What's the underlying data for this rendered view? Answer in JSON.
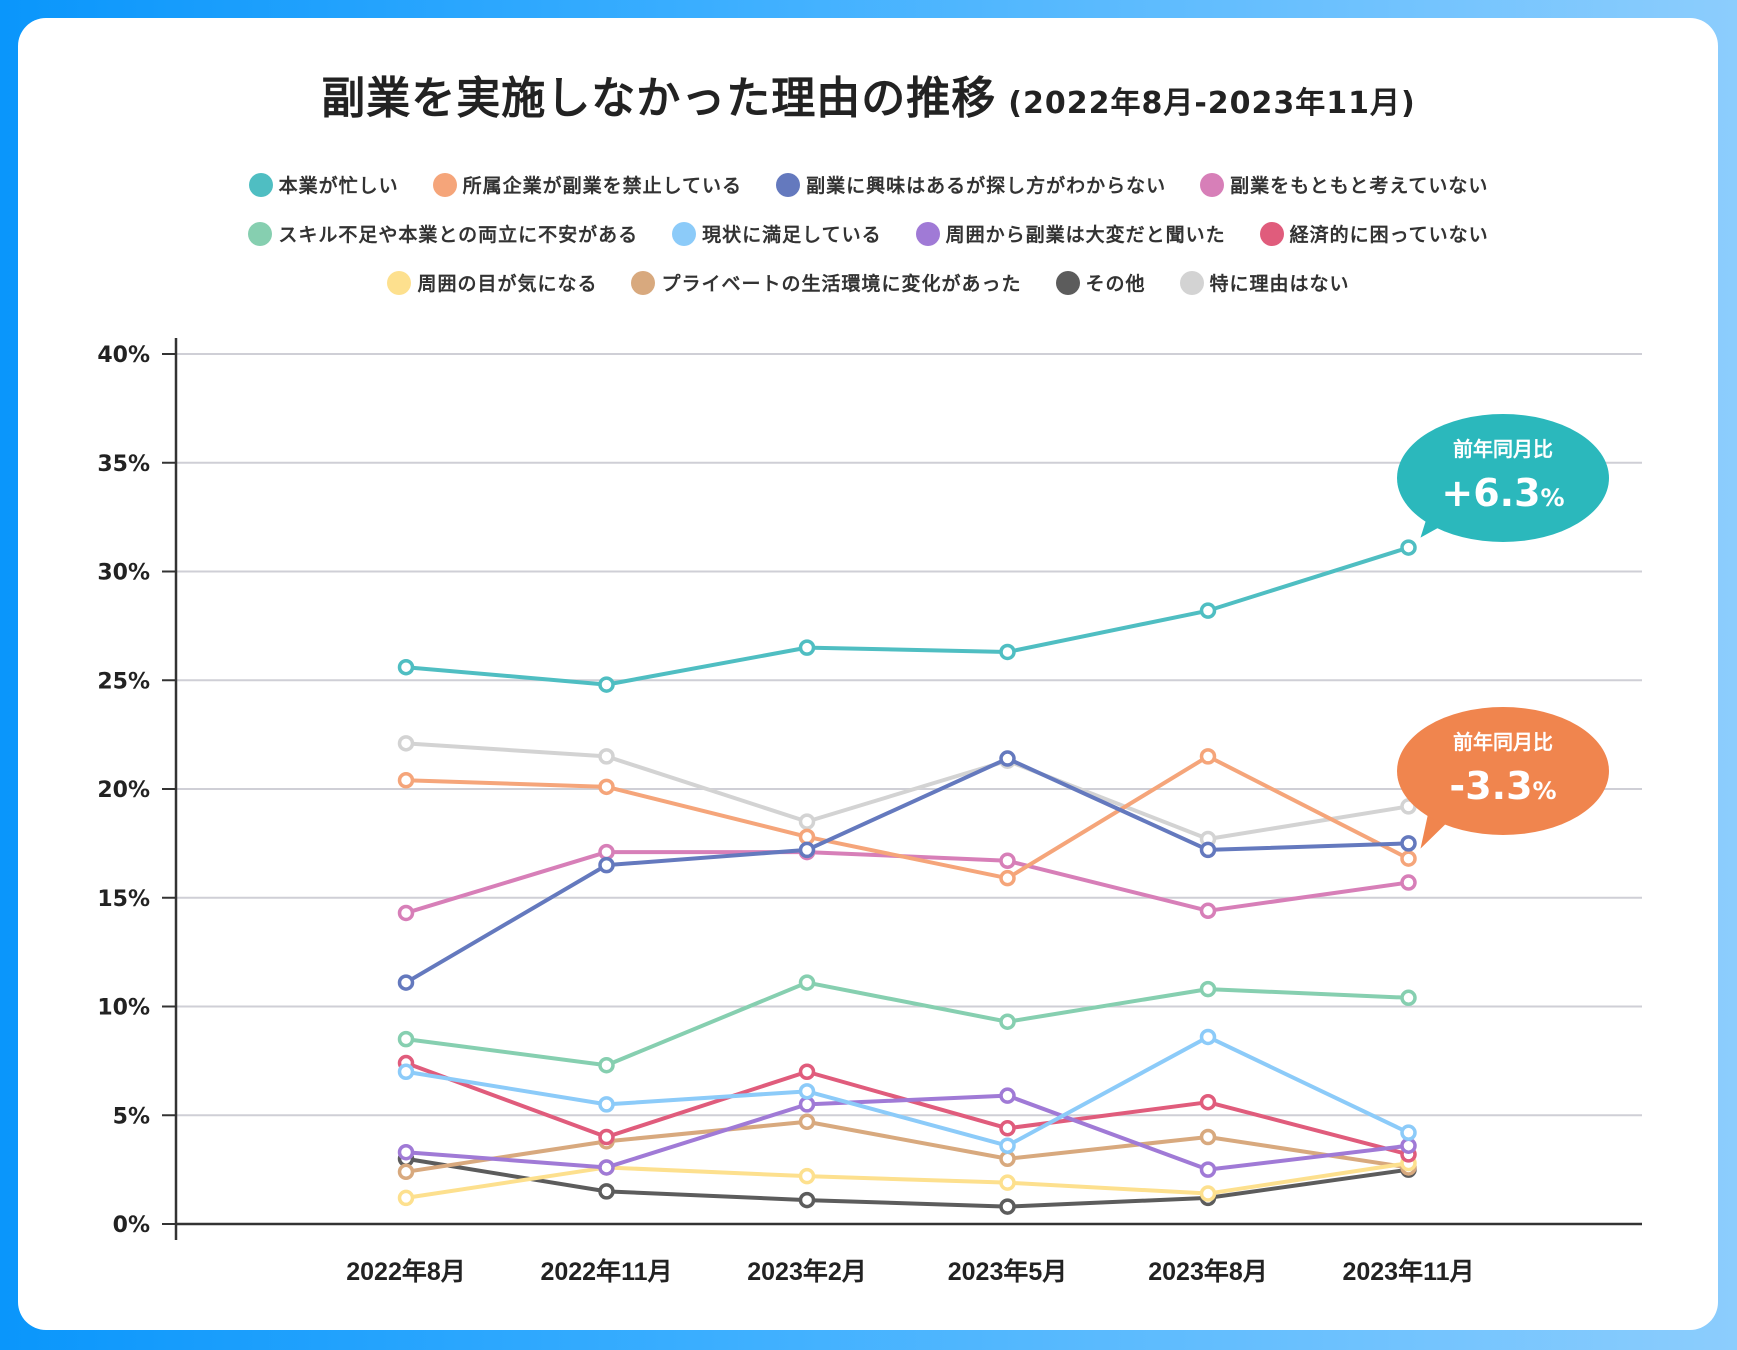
{
  "title": {
    "main": "副業を実施しなかった理由の推移",
    "sub": "(2022年8月-2023年11月)"
  },
  "chart_data": {
    "type": "line",
    "title": "副業を実施しなかった理由の推移 (2022年8月-2023年11月)",
    "xlabel": "",
    "ylabel": "",
    "x": [
      "2022年8月",
      "2022年11月",
      "2023年2月",
      "2023年5月",
      "2023年8月",
      "2023年11月"
    ],
    "ylim": [
      0,
      40
    ],
    "yticks": [
      0,
      5,
      10,
      15,
      20,
      25,
      30,
      35,
      40
    ],
    "ytick_labels": [
      "0%",
      "5%",
      "10%",
      "15%",
      "20%",
      "25%",
      "30%",
      "35%",
      "40%"
    ],
    "grid": true,
    "legend_position": "top",
    "series": [
      {
        "name": "本業が忙しい",
        "color": "#4fbec2",
        "values": [
          25.6,
          24.8,
          26.5,
          26.3,
          28.2,
          31.1
        ]
      },
      {
        "name": "所属企業が副業を禁止している",
        "color": "#f5a57a",
        "values": [
          20.4,
          20.1,
          17.8,
          15.9,
          21.5,
          16.8
        ]
      },
      {
        "name": "副業に興味はあるが探し方がわからない",
        "color": "#6479be",
        "values": [
          11.1,
          16.5,
          17.2,
          21.4,
          17.2,
          17.5
        ]
      },
      {
        "name": "副業をもともと考えていない",
        "color": "#d77fb8",
        "values": [
          14.3,
          17.1,
          17.1,
          16.7,
          14.4,
          15.7
        ]
      },
      {
        "name": "スキル不足や本業との両立に不安がある",
        "color": "#86cfb0",
        "values": [
          8.5,
          7.3,
          11.1,
          9.3,
          10.8,
          10.4
        ]
      },
      {
        "name": "現状に満足している",
        "color": "#8ccbf9",
        "values": [
          7.0,
          5.5,
          6.1,
          3.6,
          8.6,
          4.2
        ]
      },
      {
        "name": "周囲から副業は大変だと聞いた",
        "color": "#a07ad6",
        "values": [
          3.3,
          2.6,
          5.5,
          5.9,
          2.5,
          3.6
        ]
      },
      {
        "name": "経済的に困っていない",
        "color": "#e05c7c",
        "values": [
          7.4,
          4.0,
          7.0,
          4.4,
          5.6,
          3.2
        ]
      },
      {
        "name": "周囲の目が気になる",
        "color": "#fde08e",
        "values": [
          1.2,
          2.6,
          2.2,
          1.9,
          1.4,
          2.8
        ]
      },
      {
        "name": "プライベートの生活環境に変化があった",
        "color": "#d8a97e",
        "values": [
          2.4,
          3.8,
          4.7,
          3.0,
          4.0,
          2.6
        ]
      },
      {
        "name": "その他",
        "color": "#5c5c5c",
        "values": [
          3.0,
          1.5,
          1.1,
          0.8,
          1.2,
          2.5
        ]
      },
      {
        "name": "特に理由はない",
        "color": "#d3d3d3",
        "values": [
          22.1,
          21.5,
          18.5,
          21.3,
          17.7,
          19.2
        ]
      }
    ],
    "annotations": [
      {
        "series": "本業が忙しい",
        "label": "前年同月比",
        "value": "+6.3",
        "unit": "%",
        "color": "#2bb8bc"
      },
      {
        "series": "所属企業が副業を禁止している",
        "label": "前年同月比",
        "value": "-3.3",
        "unit": "%",
        "color": "#f0854e"
      }
    ]
  },
  "legend_rows": [
    [
      0,
      1,
      2,
      3
    ],
    [
      4,
      5,
      6,
      7
    ],
    [
      8,
      9,
      10,
      11
    ]
  ]
}
